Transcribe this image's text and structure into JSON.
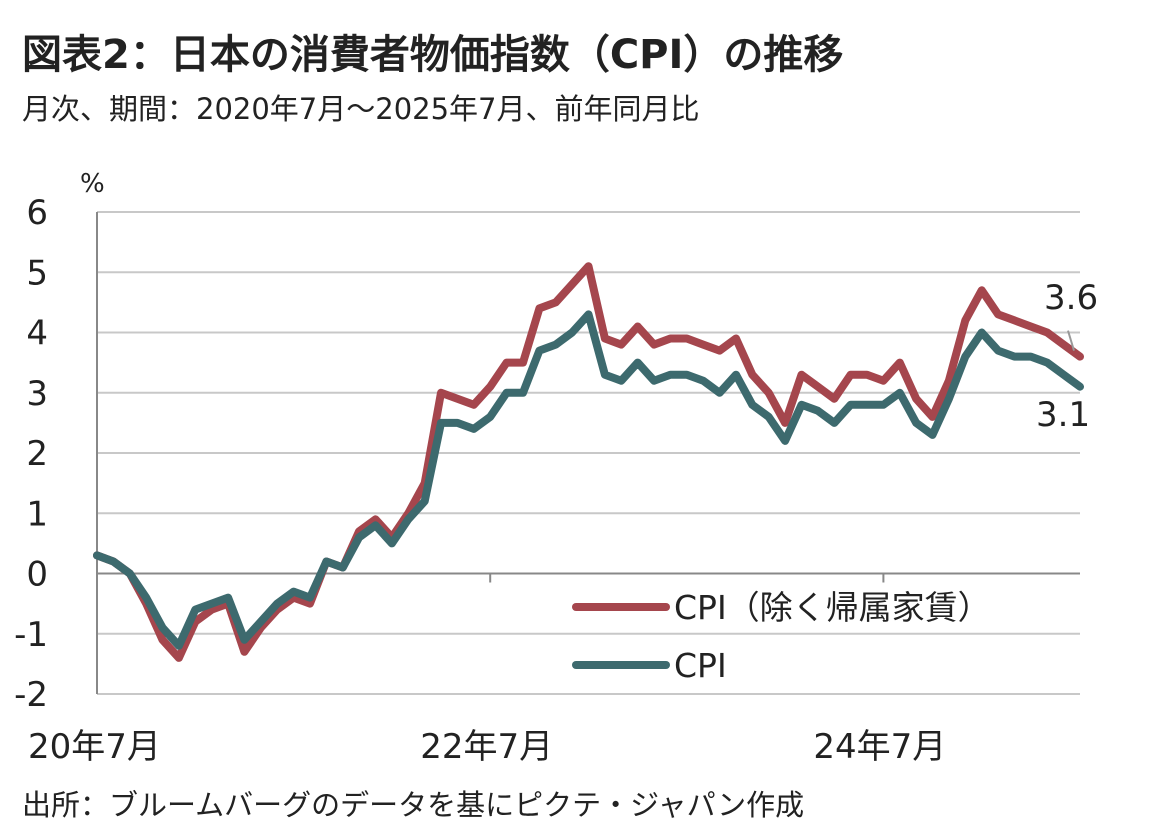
{
  "title": "図表2：日本の消費者物価指数（CPI）の推移",
  "subtitle": "月次、期間：2020年7月～2025年7月、前年同月比",
  "source": "出所：ブルームバーグのデータを基にピクテ・ジャパン作成",
  "chart_data": {
    "type": "line",
    "ylabel": "%",
    "ylim": [
      -2,
      6
    ],
    "yticks": [
      -2,
      -1,
      0,
      1,
      2,
      3,
      4,
      5,
      6
    ],
    "x": [
      "2020-07",
      "2020-08",
      "2020-09",
      "2020-10",
      "2020-11",
      "2020-12",
      "2021-01",
      "2021-02",
      "2021-03",
      "2021-04",
      "2021-05",
      "2021-06",
      "2021-07",
      "2021-08",
      "2021-09",
      "2021-10",
      "2021-11",
      "2021-12",
      "2022-01",
      "2022-02",
      "2022-03",
      "2022-04",
      "2022-05",
      "2022-06",
      "2022-07",
      "2022-08",
      "2022-09",
      "2022-10",
      "2022-11",
      "2022-12",
      "2023-01",
      "2023-02",
      "2023-03",
      "2023-04",
      "2023-05",
      "2023-06",
      "2023-07",
      "2023-08",
      "2023-09",
      "2023-10",
      "2023-11",
      "2023-12",
      "2024-01",
      "2024-02",
      "2024-03",
      "2024-04",
      "2024-05",
      "2024-06",
      "2024-07",
      "2024-08",
      "2024-09",
      "2024-10",
      "2024-11",
      "2024-12",
      "2025-01",
      "2025-02",
      "2025-03",
      "2025-04",
      "2025-05",
      "2025-06",
      "2025-07"
    ],
    "xtick_labels": [
      "20年7月",
      "22年7月",
      "24年7月"
    ],
    "series": [
      {
        "name": "CPI（除く帰属家賃）",
        "color": "#a5464d",
        "values": [
          0.3,
          0.2,
          0.0,
          -0.5,
          -1.1,
          -1.4,
          -0.8,
          -0.6,
          -0.5,
          -1.3,
          -0.9,
          -0.6,
          -0.4,
          -0.5,
          0.2,
          0.1,
          0.7,
          0.9,
          0.6,
          1.0,
          1.5,
          3.0,
          2.9,
          2.8,
          3.1,
          3.5,
          3.5,
          4.4,
          4.5,
          4.8,
          5.1,
          3.9,
          3.8,
          4.1,
          3.8,
          3.9,
          3.9,
          3.8,
          3.7,
          3.9,
          3.3,
          3.0,
          2.5,
          3.3,
          3.1,
          2.9,
          3.3,
          3.3,
          3.2,
          3.5,
          2.9,
          2.6,
          3.2,
          4.2,
          4.7,
          4.3,
          4.2,
          4.1,
          4.0,
          3.8,
          3.6
        ]
      },
      {
        "name": "CPI",
        "color": "#3d6a6e",
        "values": [
          0.3,
          0.2,
          0.0,
          -0.4,
          -0.9,
          -1.2,
          -0.6,
          -0.5,
          -0.4,
          -1.1,
          -0.8,
          -0.5,
          -0.3,
          -0.4,
          0.2,
          0.1,
          0.6,
          0.8,
          0.5,
          0.9,
          1.2,
          2.5,
          2.5,
          2.4,
          2.6,
          3.0,
          3.0,
          3.7,
          3.8,
          4.0,
          4.3,
          3.3,
          3.2,
          3.5,
          3.2,
          3.3,
          3.3,
          3.2,
          3.0,
          3.3,
          2.8,
          2.6,
          2.2,
          2.8,
          2.7,
          2.5,
          2.8,
          2.8,
          2.8,
          3.0,
          2.5,
          2.3,
          2.9,
          3.6,
          4.0,
          3.7,
          3.6,
          3.6,
          3.5,
          3.3,
          3.1
        ]
      }
    ],
    "annotations": [
      "3.6",
      "3.1"
    ],
    "grid": true,
    "legend": "bottom-right"
  }
}
